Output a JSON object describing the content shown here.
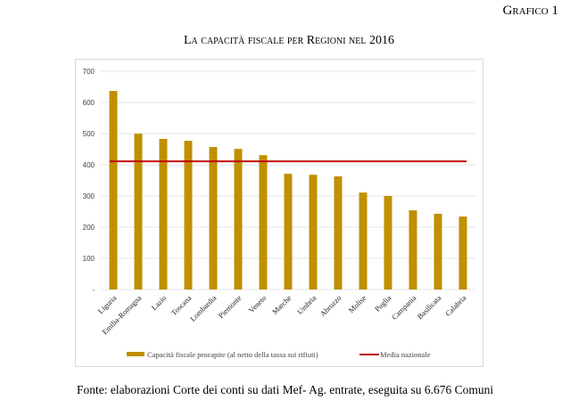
{
  "header": {
    "label": "Grafico 1"
  },
  "chart_data": {
    "type": "bar",
    "title": "La capacità fiscale per Regioni nel 2016",
    "xlabel": "",
    "ylabel": "",
    "ylim": [
      0,
      700
    ],
    "yticks": [
      0,
      100,
      200,
      300,
      400,
      500,
      600,
      700
    ],
    "ytick_labels": [
      "-",
      "100",
      "200",
      "300",
      "400",
      "500",
      "600",
      "700"
    ],
    "grid": true,
    "categories": [
      "Liguria",
      "Emilia-Romagna",
      "Lazio",
      "Toscana",
      "Lombardia",
      "Piemonte",
      "Veneto",
      "Marche",
      "Umbria",
      "Abruzzo",
      "Molise",
      "Puglia",
      "Campania",
      "Basilicata",
      "Calabria"
    ],
    "series": [
      {
        "name": "Capacità fiscale procapite (al netto della tassa sui rifiuti)",
        "type": "bar",
        "color": "#c09000",
        "values": [
          637,
          500,
          483,
          477,
          457,
          451,
          431,
          371,
          368,
          363,
          311,
          300,
          254,
          243,
          234
        ]
      },
      {
        "name": "Media nazionale",
        "type": "line",
        "color": "#c00000",
        "values": [
          411,
          411,
          411,
          411,
          411,
          411,
          411,
          411,
          411,
          411,
          411,
          411,
          411,
          411,
          411
        ]
      }
    ],
    "legend_position": "bottom"
  },
  "footer": {
    "source": "Fonte: elaborazioni Corte dei conti su dati Mef- Ag. entrate, eseguita su 6.676 Comuni"
  }
}
